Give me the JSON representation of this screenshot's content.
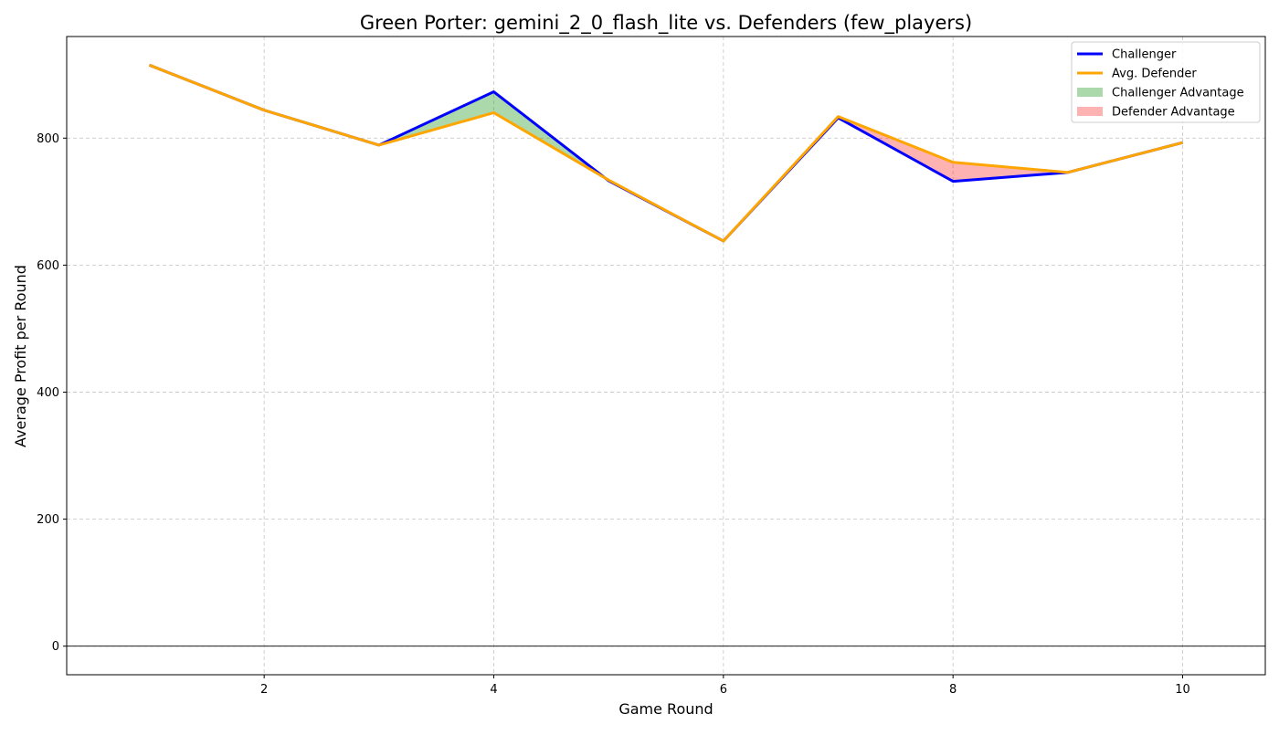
{
  "chart_data": {
    "type": "line",
    "title": "Green Porter: gemini_2_0_flash_lite vs. Defenders (few_players)",
    "xlabel": "Game Round",
    "ylabel": "Average Profit per Round",
    "x": [
      1,
      2,
      3,
      4,
      5,
      6,
      7,
      8,
      9,
      10
    ],
    "xlim": [
      0.28,
      10.72
    ],
    "ylim": [
      -45,
      960
    ],
    "xticks": [
      2,
      4,
      6,
      8,
      10
    ],
    "yticks": [
      0,
      200,
      400,
      600,
      800
    ],
    "grid": true,
    "zero_line": true,
    "legend_position": "top-right",
    "series": [
      {
        "name": "Challenger",
        "color": "#0000ff",
        "values": [
          915,
          844,
          789,
          873,
          733,
          638,
          832,
          732,
          746,
          793
        ]
      },
      {
        "name": "Avg. Defender",
        "color": "#ffa500",
        "values": [
          915,
          844,
          789,
          840,
          734,
          638,
          834,
          762,
          746,
          793
        ]
      }
    ],
    "fills": [
      {
        "name": "Challenger Advantage",
        "color": "#2ca02c",
        "alpha": 0.4
      },
      {
        "name": "Defender Advantage",
        "color": "#ff0000",
        "alpha": 0.3
      }
    ]
  }
}
